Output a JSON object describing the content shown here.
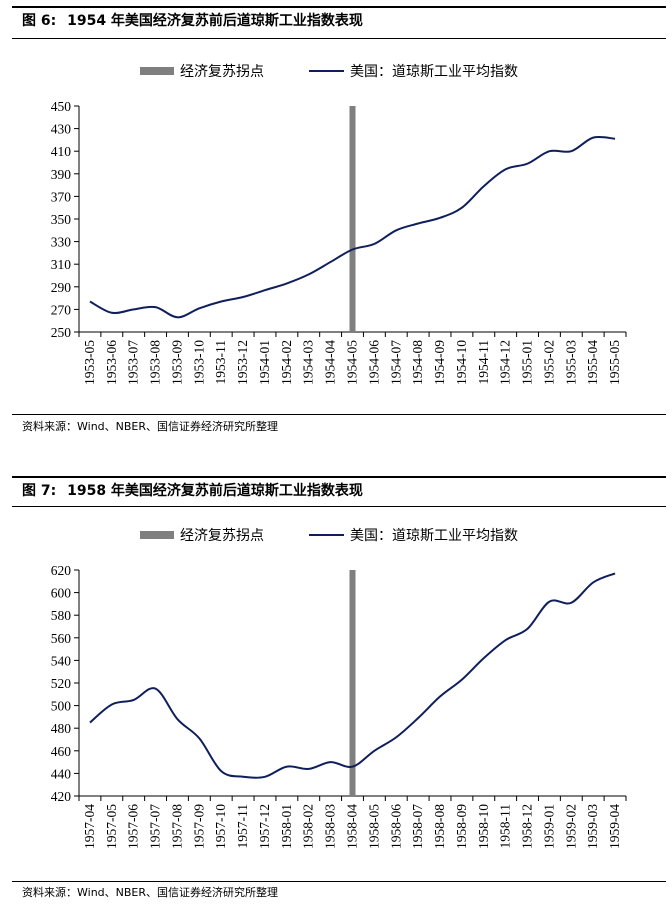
{
  "charts": [
    {
      "figure_label": "图 6:",
      "title": "1954 年美国经济复苏前后道琼斯工业指数表现",
      "source": "资料来源：Wind、NBER、国信证券经济研究所整理"
    },
    {
      "figure_label": "图 7:",
      "title": "1958 年美国经济复苏前后道琼斯工业指数表现",
      "source": "资料来源：Wind、NBER、国信证券经济研究所整理"
    }
  ],
  "chart_data": [
    {
      "type": "line",
      "title": "1954 年美国经济复苏前后道琼斯工业指数表现",
      "legend": [
        "经济复苏拐点",
        "美国：道琼斯工业平均指数"
      ],
      "legend_position": "top-center",
      "categories": [
        "1953-05",
        "1953-06",
        "1953-07",
        "1953-08",
        "1953-09",
        "1953-10",
        "1953-11",
        "1953-12",
        "1954-01",
        "1954-02",
        "1954-03",
        "1954-04",
        "1954-05",
        "1954-06",
        "1954-07",
        "1954-08",
        "1954-09",
        "1954-10",
        "1954-11",
        "1954-12",
        "1955-01",
        "1955-02",
        "1955-03",
        "1955-04",
        "1955-05"
      ],
      "series": [
        {
          "name": "美国：道琼斯工业平均指数",
          "color": "#0f1f5c",
          "values": [
            277,
            267,
            270,
            272,
            263,
            271,
            277,
            281,
            287,
            293,
            301,
            312,
            323,
            328,
            340,
            346,
            351,
            360,
            379,
            394,
            399,
            410,
            410,
            422,
            421
          ]
        }
      ],
      "marker": {
        "name": "经济复苏拐点",
        "category": "1954-05",
        "color": "#7f7f7f"
      },
      "ylim": [
        250,
        450
      ],
      "yticks": [
        250,
        270,
        290,
        310,
        330,
        350,
        370,
        390,
        410,
        430,
        450
      ],
      "grid": false
    },
    {
      "type": "line",
      "title": "1958 年美国经济复苏前后道琼斯工业指数表现",
      "legend": [
        "经济复苏拐点",
        "美国：道琼斯工业平均指数"
      ],
      "legend_position": "top-center",
      "categories": [
        "1957-04",
        "1957-05",
        "1957-06",
        "1957-07",
        "1957-08",
        "1957-09",
        "1957-10",
        "1957-11",
        "1957-12",
        "1958-01",
        "1958-02",
        "1958-03",
        "1958-04",
        "1958-05",
        "1958-06",
        "1958-07",
        "1958-08",
        "1958-09",
        "1958-10",
        "1958-11",
        "1958-12",
        "1959-01",
        "1959-02",
        "1959-03",
        "1959-04"
      ],
      "series": [
        {
          "name": "美国：道琼斯工业平均指数",
          "color": "#0f1f5c",
          "values": [
            485,
            501,
            505,
            515,
            488,
            471,
            442,
            437,
            437,
            446,
            444,
            450,
            446,
            460,
            472,
            489,
            508,
            523,
            542,
            558,
            568,
            592,
            591,
            609,
            617
          ]
        }
      ],
      "marker": {
        "name": "经济复苏拐点",
        "category": "1958-04",
        "color": "#7f7f7f"
      },
      "ylim": [
        420,
        620
      ],
      "yticks": [
        420,
        440,
        460,
        480,
        500,
        520,
        540,
        560,
        580,
        600,
        620
      ],
      "grid": false
    }
  ]
}
